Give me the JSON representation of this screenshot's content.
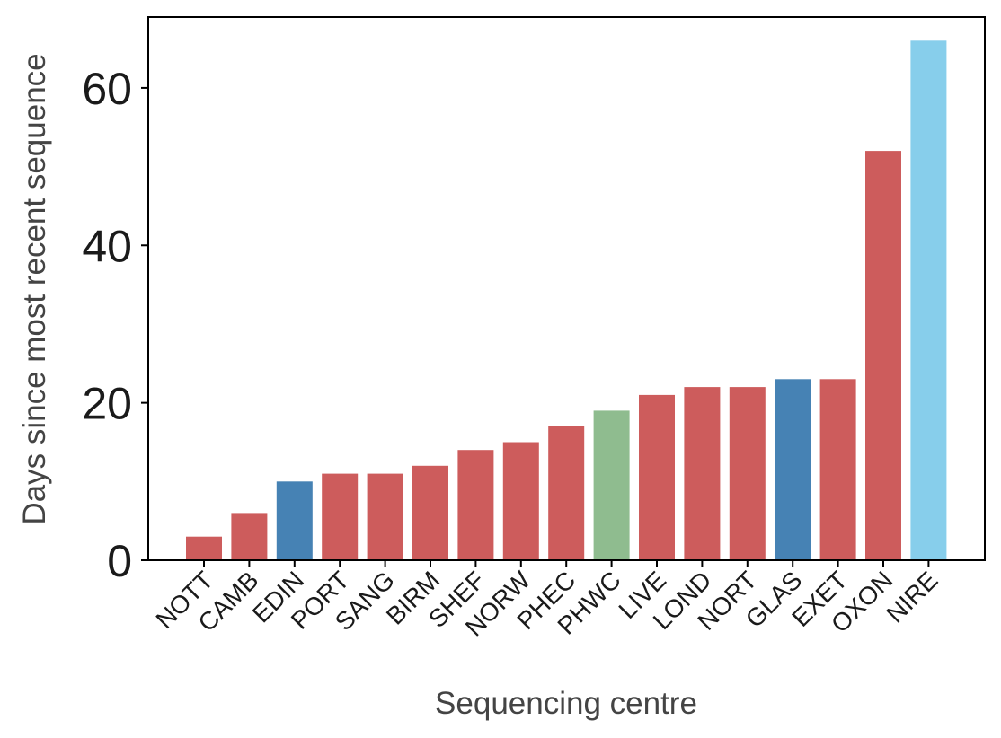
{
  "chart_data": {
    "type": "bar",
    "title": "",
    "xlabel": "Sequencing centre",
    "ylabel": "Days since most recent sequence",
    "ylim": [
      0,
      69
    ],
    "yticks": [
      0,
      20,
      40,
      60
    ],
    "grid": false,
    "legend": "none",
    "categories": [
      "NOTT",
      "CAMB",
      "EDIN",
      "PORT",
      "SANG",
      "BIRM",
      "SHEF",
      "NORW",
      "PHEC",
      "PHWC",
      "LIVE",
      "LOND",
      "NORT",
      "GLAS",
      "EXET",
      "OXON",
      "NIRE"
    ],
    "values": [
      3,
      6,
      10,
      11,
      11,
      12,
      14,
      15,
      17,
      19,
      21,
      22,
      22,
      23,
      23,
      52,
      66
    ],
    "bar_colors": [
      "#cd5c5c",
      "#cd5c5c",
      "#4682b4",
      "#cd5c5c",
      "#cd5c5c",
      "#cd5c5c",
      "#cd5c5c",
      "#cd5c5c",
      "#cd5c5c",
      "#8fbc8f",
      "#cd5c5c",
      "#cd5c5c",
      "#cd5c5c",
      "#4682b4",
      "#cd5c5c",
      "#cd5c5c",
      "#87ceeb"
    ],
    "x_tick_rotation_deg": 45
  }
}
